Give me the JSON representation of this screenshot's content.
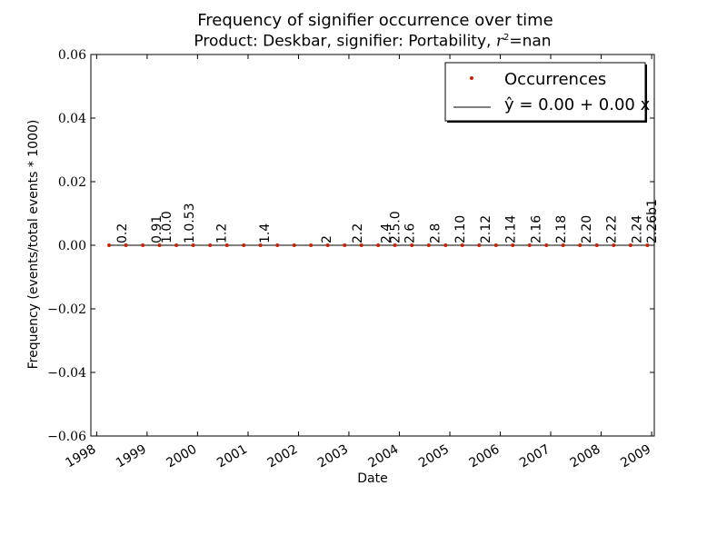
{
  "chart_data": {
    "type": "scatter",
    "title": "Frequency of signifier occurrence over time",
    "subtitle_prefix": "Product: Deskbar, signifier: Portability, ",
    "subtitle_math": "r",
    "subtitle_sup": "2",
    "subtitle_suffix": "=nan",
    "xlabel": "Date",
    "ylabel": "Frequency (events/total events * 1000)",
    "ylim": [
      -0.06,
      0.06
    ],
    "xlim": [
      "1997-11-20",
      "2009-01-20"
    ],
    "y_ticks": [
      {
        "v": -0.06,
        "label": "−0.06"
      },
      {
        "v": -0.04,
        "label": "−0.04"
      },
      {
        "v": -0.02,
        "label": "−0.02"
      },
      {
        "v": 0.0,
        "label": "0.00"
      },
      {
        "v": 0.02,
        "label": "0.02"
      },
      {
        "v": 0.04,
        "label": "0.04"
      },
      {
        "v": 0.06,
        "label": "0.06"
      }
    ],
    "x_ticks": [
      {
        "date": "1998-01-01",
        "label": "1998"
      },
      {
        "date": "1999-01-01",
        "label": "1999"
      },
      {
        "date": "2000-01-01",
        "label": "2000"
      },
      {
        "date": "2001-01-01",
        "label": "2001"
      },
      {
        "date": "2002-01-01",
        "label": "2002"
      },
      {
        "date": "2003-01-01",
        "label": "2003"
      },
      {
        "date": "2004-01-01",
        "label": "2004"
      },
      {
        "date": "2005-01-01",
        "label": "2005"
      },
      {
        "date": "2006-01-01",
        "label": "2006"
      },
      {
        "date": "2007-01-01",
        "label": "2007"
      },
      {
        "date": "2008-01-01",
        "label": "2008"
      },
      {
        "date": "2009-01-01",
        "label": "2009"
      }
    ],
    "occurrences": {
      "start": "1998-04-01",
      "end": "2009-01-01",
      "y": 0.0,
      "color": "#cc2200"
    },
    "fit": {
      "intercept": 0.0,
      "slope": 0.0,
      "color": "#000000"
    },
    "legend": {
      "placement": "top-right",
      "occurrences_label": "Occurrences",
      "fit_label": "ŷ = 0.00 + 0.00 x"
    },
    "version_markers": [
      {
        "label": "0.2",
        "date": "1998-07-01"
      },
      {
        "label": "0.91",
        "date": "1999-03-10"
      },
      {
        "label": "1.0.0",
        "date": "1999-05-20"
      },
      {
        "label": "1.0.53",
        "date": "1999-11-01"
      },
      {
        "label": "1.2",
        "date": "2000-06-20"
      },
      {
        "label": "1.4",
        "date": "2001-05-01"
      },
      {
        "label": "2",
        "date": "2002-07-20"
      },
      {
        "label": "2.2",
        "date": "2003-03-01"
      },
      {
        "label": "2.4",
        "date": "2003-09-25"
      },
      {
        "label": "2.5.0",
        "date": "2003-12-01"
      },
      {
        "label": "2.6",
        "date": "2004-03-15"
      },
      {
        "label": "2.8",
        "date": "2004-09-15"
      },
      {
        "label": "2.10",
        "date": "2005-03-15"
      },
      {
        "label": "2.12",
        "date": "2005-09-15"
      },
      {
        "label": "2.14",
        "date": "2006-03-15"
      },
      {
        "label": "2.16",
        "date": "2006-09-15"
      },
      {
        "label": "2.18",
        "date": "2007-03-15"
      },
      {
        "label": "2.20",
        "date": "2007-09-15"
      },
      {
        "label": "2.22",
        "date": "2008-03-15"
      },
      {
        "label": "2.24",
        "date": "2008-09-15"
      },
      {
        "label": "2.26b1",
        "date": "2009-01-01"
      }
    ]
  }
}
